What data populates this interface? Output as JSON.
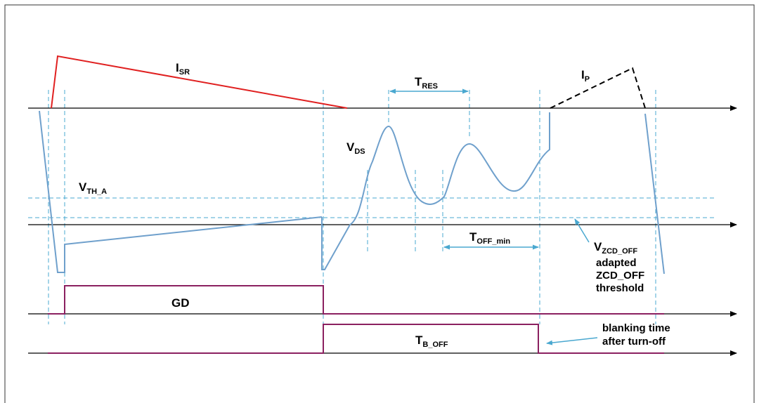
{
  "colors": {
    "isr": "#e02020",
    "vds": "#6fa0cc",
    "guide": "#4aa8d0",
    "gd": "#8b2060",
    "axis": "#000000",
    "ip": "#000000",
    "border": "#333333"
  },
  "labels": {
    "isr": {
      "main": "I",
      "sub": "SR"
    },
    "ip": {
      "main": "I",
      "sub": "P"
    },
    "vds": {
      "main": "V",
      "sub": "DS"
    },
    "vth": {
      "main": "V",
      "sub": "TH_A"
    },
    "tres": {
      "main": "T",
      "sub": "RES"
    },
    "toff": {
      "main": "T",
      "sub": "OFF_min"
    },
    "vzcd": {
      "main": "V",
      "sub": "ZCD_OFF"
    },
    "zcd_line1": "adapted",
    "zcd_line2": "ZCD_OFF",
    "zcd_line3": "threshold",
    "gd": "GD",
    "tboff": {
      "main": "T",
      "sub": "B_OFF"
    },
    "blank_line1": "blanking time",
    "blank_line2": "after turn-off"
  }
}
